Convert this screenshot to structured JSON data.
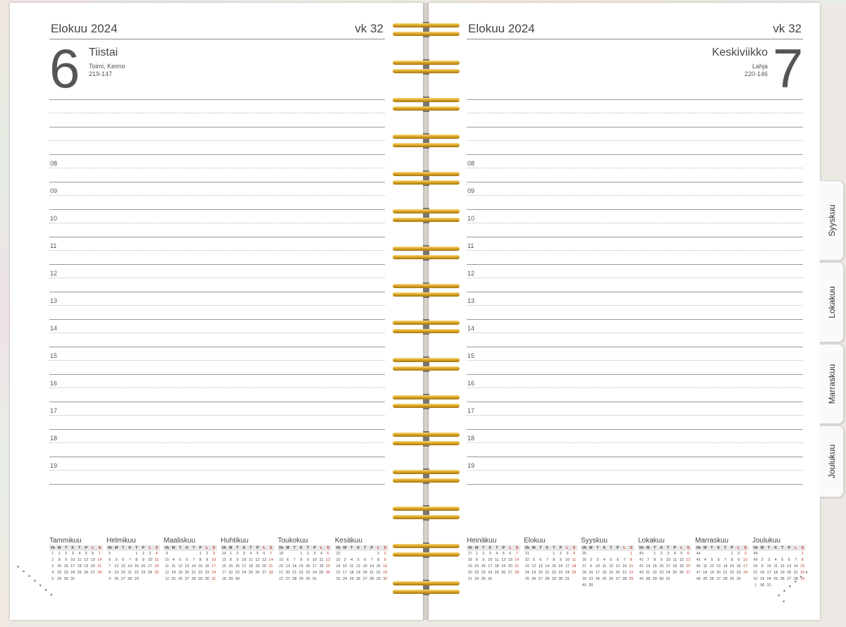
{
  "left": {
    "month": "Elokuu 2024",
    "week": "vk 32",
    "day_number": "6",
    "day_name": "Tiistai",
    "names": "Toimi, Keimo",
    "day_count": "219-147"
  },
  "right": {
    "month": "Elokuu 2024",
    "week": "vk 32",
    "day_number": "7",
    "day_name": "Keskiviikko",
    "names": "Lahja",
    "day_count": "220-146"
  },
  "hours": [
    "08",
    "09",
    "10",
    "11",
    "12",
    "13",
    "14",
    "15",
    "16",
    "17",
    "18",
    "19"
  ],
  "tabs": [
    "Syyskuu",
    "Lokakuu",
    "Marraskuu",
    "Joulukuu"
  ],
  "calendar_header": [
    "Vk",
    "M",
    "T",
    "K",
    "T",
    "P",
    "L",
    "S"
  ],
  "calendars_left": [
    {
      "name": "Tammikuu",
      "rows": [
        [
          "1",
          "1",
          "2",
          "3",
          "4",
          "5",
          "6",
          "7"
        ],
        [
          "2",
          "8",
          "9",
          "10",
          "11",
          "12",
          "13",
          "14"
        ],
        [
          "3",
          "15",
          "16",
          "17",
          "18",
          "19",
          "20",
          "21"
        ],
        [
          "4",
          "22",
          "23",
          "24",
          "25",
          "26",
          "27",
          "28"
        ],
        [
          "5",
          "29",
          "30",
          "31",
          "",
          "",
          "",
          ""
        ]
      ]
    },
    {
      "name": "Helmikuu",
      "rows": [
        [
          "5",
          "",
          "",
          "",
          "1",
          "2",
          "3",
          "4"
        ],
        [
          "6",
          "5",
          "6",
          "7",
          "8",
          "9",
          "10",
          "11"
        ],
        [
          "7",
          "12",
          "13",
          "14",
          "15",
          "16",
          "17",
          "18"
        ],
        [
          "8",
          "19",
          "20",
          "21",
          "22",
          "23",
          "24",
          "25"
        ],
        [
          "9",
          "26",
          "27",
          "28",
          "29",
          "",
          "",
          ""
        ]
      ]
    },
    {
      "name": "Maaliskuu",
      "rows": [
        [
          "9",
          "",
          "",
          "",
          "",
          "1",
          "2",
          "3"
        ],
        [
          "10",
          "4",
          "5",
          "6",
          "7",
          "8",
          "9",
          "10"
        ],
        [
          "11",
          "11",
          "12",
          "13",
          "14",
          "15",
          "16",
          "17"
        ],
        [
          "12",
          "18",
          "19",
          "20",
          "21",
          "22",
          "23",
          "24"
        ],
        [
          "13",
          "25",
          "26",
          "27",
          "28",
          "29",
          "30",
          "31"
        ]
      ]
    },
    {
      "name": "Huhtikuu",
      "rows": [
        [
          "14",
          "1",
          "2",
          "3",
          "4",
          "5",
          "6",
          "7"
        ],
        [
          "15",
          "8",
          "9",
          "10",
          "11",
          "12",
          "13",
          "14"
        ],
        [
          "16",
          "15",
          "16",
          "17",
          "18",
          "19",
          "20",
          "21"
        ],
        [
          "17",
          "22",
          "23",
          "24",
          "25",
          "26",
          "27",
          "28"
        ],
        [
          "18",
          "29",
          "30",
          "",
          "",
          "",
          "",
          ""
        ]
      ]
    },
    {
      "name": "Toukokuu",
      "rows": [
        [
          "18",
          "",
          "",
          "1",
          "2",
          "3",
          "4",
          "5"
        ],
        [
          "19",
          "6",
          "7",
          "8",
          "9",
          "10",
          "11",
          "12"
        ],
        [
          "20",
          "13",
          "14",
          "15",
          "16",
          "17",
          "18",
          "19"
        ],
        [
          "21",
          "20",
          "21",
          "22",
          "23",
          "24",
          "25",
          "26"
        ],
        [
          "22",
          "27",
          "28",
          "29",
          "30",
          "31",
          "",
          ""
        ]
      ]
    },
    {
      "name": "Kesäkuu",
      "rows": [
        [
          "22",
          "",
          "",
          "",
          "",
          "",
          "1",
          "2"
        ],
        [
          "23",
          "3",
          "4",
          "5",
          "6",
          "7",
          "8",
          "9"
        ],
        [
          "24",
          "10",
          "11",
          "12",
          "13",
          "14",
          "15",
          "16"
        ],
        [
          "25",
          "17",
          "18",
          "19",
          "20",
          "21",
          "22",
          "23"
        ],
        [
          "26",
          "24",
          "25",
          "26",
          "27",
          "28",
          "29",
          "30"
        ]
      ]
    }
  ],
  "calendars_right": [
    {
      "name": "Heinäkuu",
      "rows": [
        [
          "27",
          "1",
          "2",
          "3",
          "4",
          "5",
          "6",
          "7"
        ],
        [
          "28",
          "8",
          "9",
          "10",
          "11",
          "12",
          "13",
          "14"
        ],
        [
          "29",
          "15",
          "16",
          "17",
          "18",
          "19",
          "20",
          "21"
        ],
        [
          "30",
          "22",
          "23",
          "24",
          "25",
          "26",
          "27",
          "28"
        ],
        [
          "31",
          "29",
          "30",
          "31",
          "",
          "",
          "",
          ""
        ]
      ]
    },
    {
      "name": "Elokuu",
      "rows": [
        [
          "31",
          "",
          "",
          "",
          "1",
          "2",
          "3",
          "4"
        ],
        [
          "32",
          "5",
          "6",
          "7",
          "8",
          "9",
          "10",
          "11"
        ],
        [
          "33",
          "12",
          "13",
          "14",
          "15",
          "16",
          "17",
          "18"
        ],
        [
          "34",
          "19",
          "20",
          "21",
          "22",
          "23",
          "24",
          "25"
        ],
        [
          "35",
          "26",
          "27",
          "28",
          "29",
          "30",
          "31",
          ""
        ]
      ]
    },
    {
      "name": "Syyskuu",
      "rows": [
        [
          "35",
          "",
          "",
          "",
          "",
          "",
          "",
          "1"
        ],
        [
          "36",
          "2",
          "3",
          "4",
          "5",
          "6",
          "7",
          "8"
        ],
        [
          "37",
          "9",
          "10",
          "11",
          "12",
          "13",
          "14",
          "15"
        ],
        [
          "38",
          "16",
          "17",
          "18",
          "19",
          "20",
          "21",
          "22"
        ],
        [
          "39",
          "23",
          "24",
          "25",
          "26",
          "27",
          "28",
          "29"
        ],
        [
          "40",
          "30",
          "",
          "",
          "",
          "",
          "",
          ""
        ]
      ]
    },
    {
      "name": "Lokakuu",
      "rows": [
        [
          "40",
          "",
          "1",
          "2",
          "3",
          "4",
          "5",
          "6"
        ],
        [
          "41",
          "7",
          "8",
          "9",
          "10",
          "11",
          "12",
          "13"
        ],
        [
          "42",
          "14",
          "15",
          "16",
          "17",
          "18",
          "19",
          "20"
        ],
        [
          "43",
          "21",
          "22",
          "23",
          "24",
          "25",
          "26",
          "27"
        ],
        [
          "44",
          "28",
          "29",
          "30",
          "31",
          "",
          "",
          ""
        ]
      ]
    },
    {
      "name": "Marraskuu",
      "rows": [
        [
          "44",
          "",
          "",
          "",
          "",
          "1",
          "2",
          "3"
        ],
        [
          "45",
          "4",
          "5",
          "6",
          "7",
          "8",
          "9",
          "10"
        ],
        [
          "46",
          "11",
          "12",
          "13",
          "14",
          "15",
          "16",
          "17"
        ],
        [
          "47",
          "18",
          "19",
          "20",
          "21",
          "22",
          "23",
          "24"
        ],
        [
          "48",
          "25",
          "26",
          "27",
          "28",
          "29",
          "30",
          ""
        ]
      ]
    },
    {
      "name": "Joulukuu",
      "rows": [
        [
          "48",
          "",
          "",
          "",
          "",
          "",
          "",
          "1"
        ],
        [
          "49",
          "2",
          "3",
          "4",
          "5",
          "6",
          "7",
          "8"
        ],
        [
          "50",
          "9",
          "10",
          "11",
          "12",
          "13",
          "14",
          "15"
        ],
        [
          "51",
          "16",
          "17",
          "18",
          "19",
          "20",
          "21",
          "22"
        ],
        [
          "52",
          "23",
          "24",
          "25",
          "26",
          "27",
          "28",
          "29"
        ],
        [
          "1",
          "30",
          "31",
          "",
          "",
          "",
          "",
          ""
        ]
      ]
    }
  ]
}
